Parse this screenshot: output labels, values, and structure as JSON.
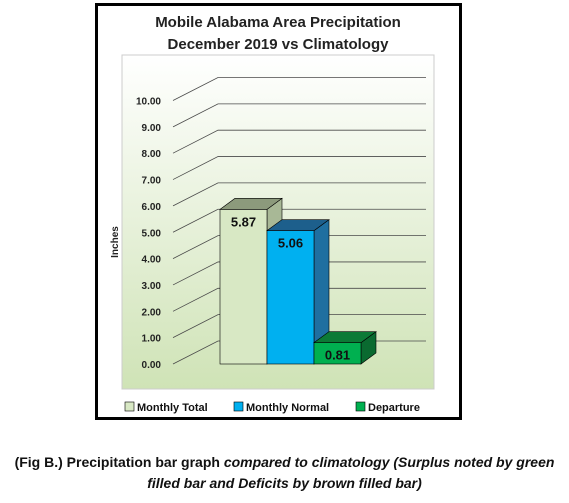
{
  "chart_data": {
    "type": "bar",
    "title_line1": "Mobile Alabama Area Precipitation",
    "title_line2": "December 2019 vs Climatology",
    "ylabel": "Inches",
    "ylim": [
      0,
      10
    ],
    "yticks": [
      "0.00",
      "1.00",
      "2.00",
      "3.00",
      "4.00",
      "5.00",
      "6.00",
      "7.00",
      "8.00",
      "9.00",
      "10.00"
    ],
    "grid": true,
    "legend_position": "bottom",
    "series": [
      {
        "name": "Monthly Total",
        "value": 5.87,
        "label": "5.87",
        "color": "#d8e8c4",
        "side": "#a8b896",
        "top": "#8c9a7c"
      },
      {
        "name": "Monthly Normal",
        "value": 5.06,
        "label": "5.06",
        "color": "#00b0f0",
        "side": "#1f6fa0",
        "top": "#1d5f8c"
      },
      {
        "name": "Departure",
        "value": 0.81,
        "label": "0.81",
        "color": "#00b050",
        "side": "#0a6a30",
        "top": "#0c7a36"
      }
    ]
  },
  "caption": {
    "plain": "(Fig B.) Precipitation bar graph ",
    "italic": "compared to climatology (Surplus noted by green filled bar and Deficits by brown filled bar)"
  }
}
